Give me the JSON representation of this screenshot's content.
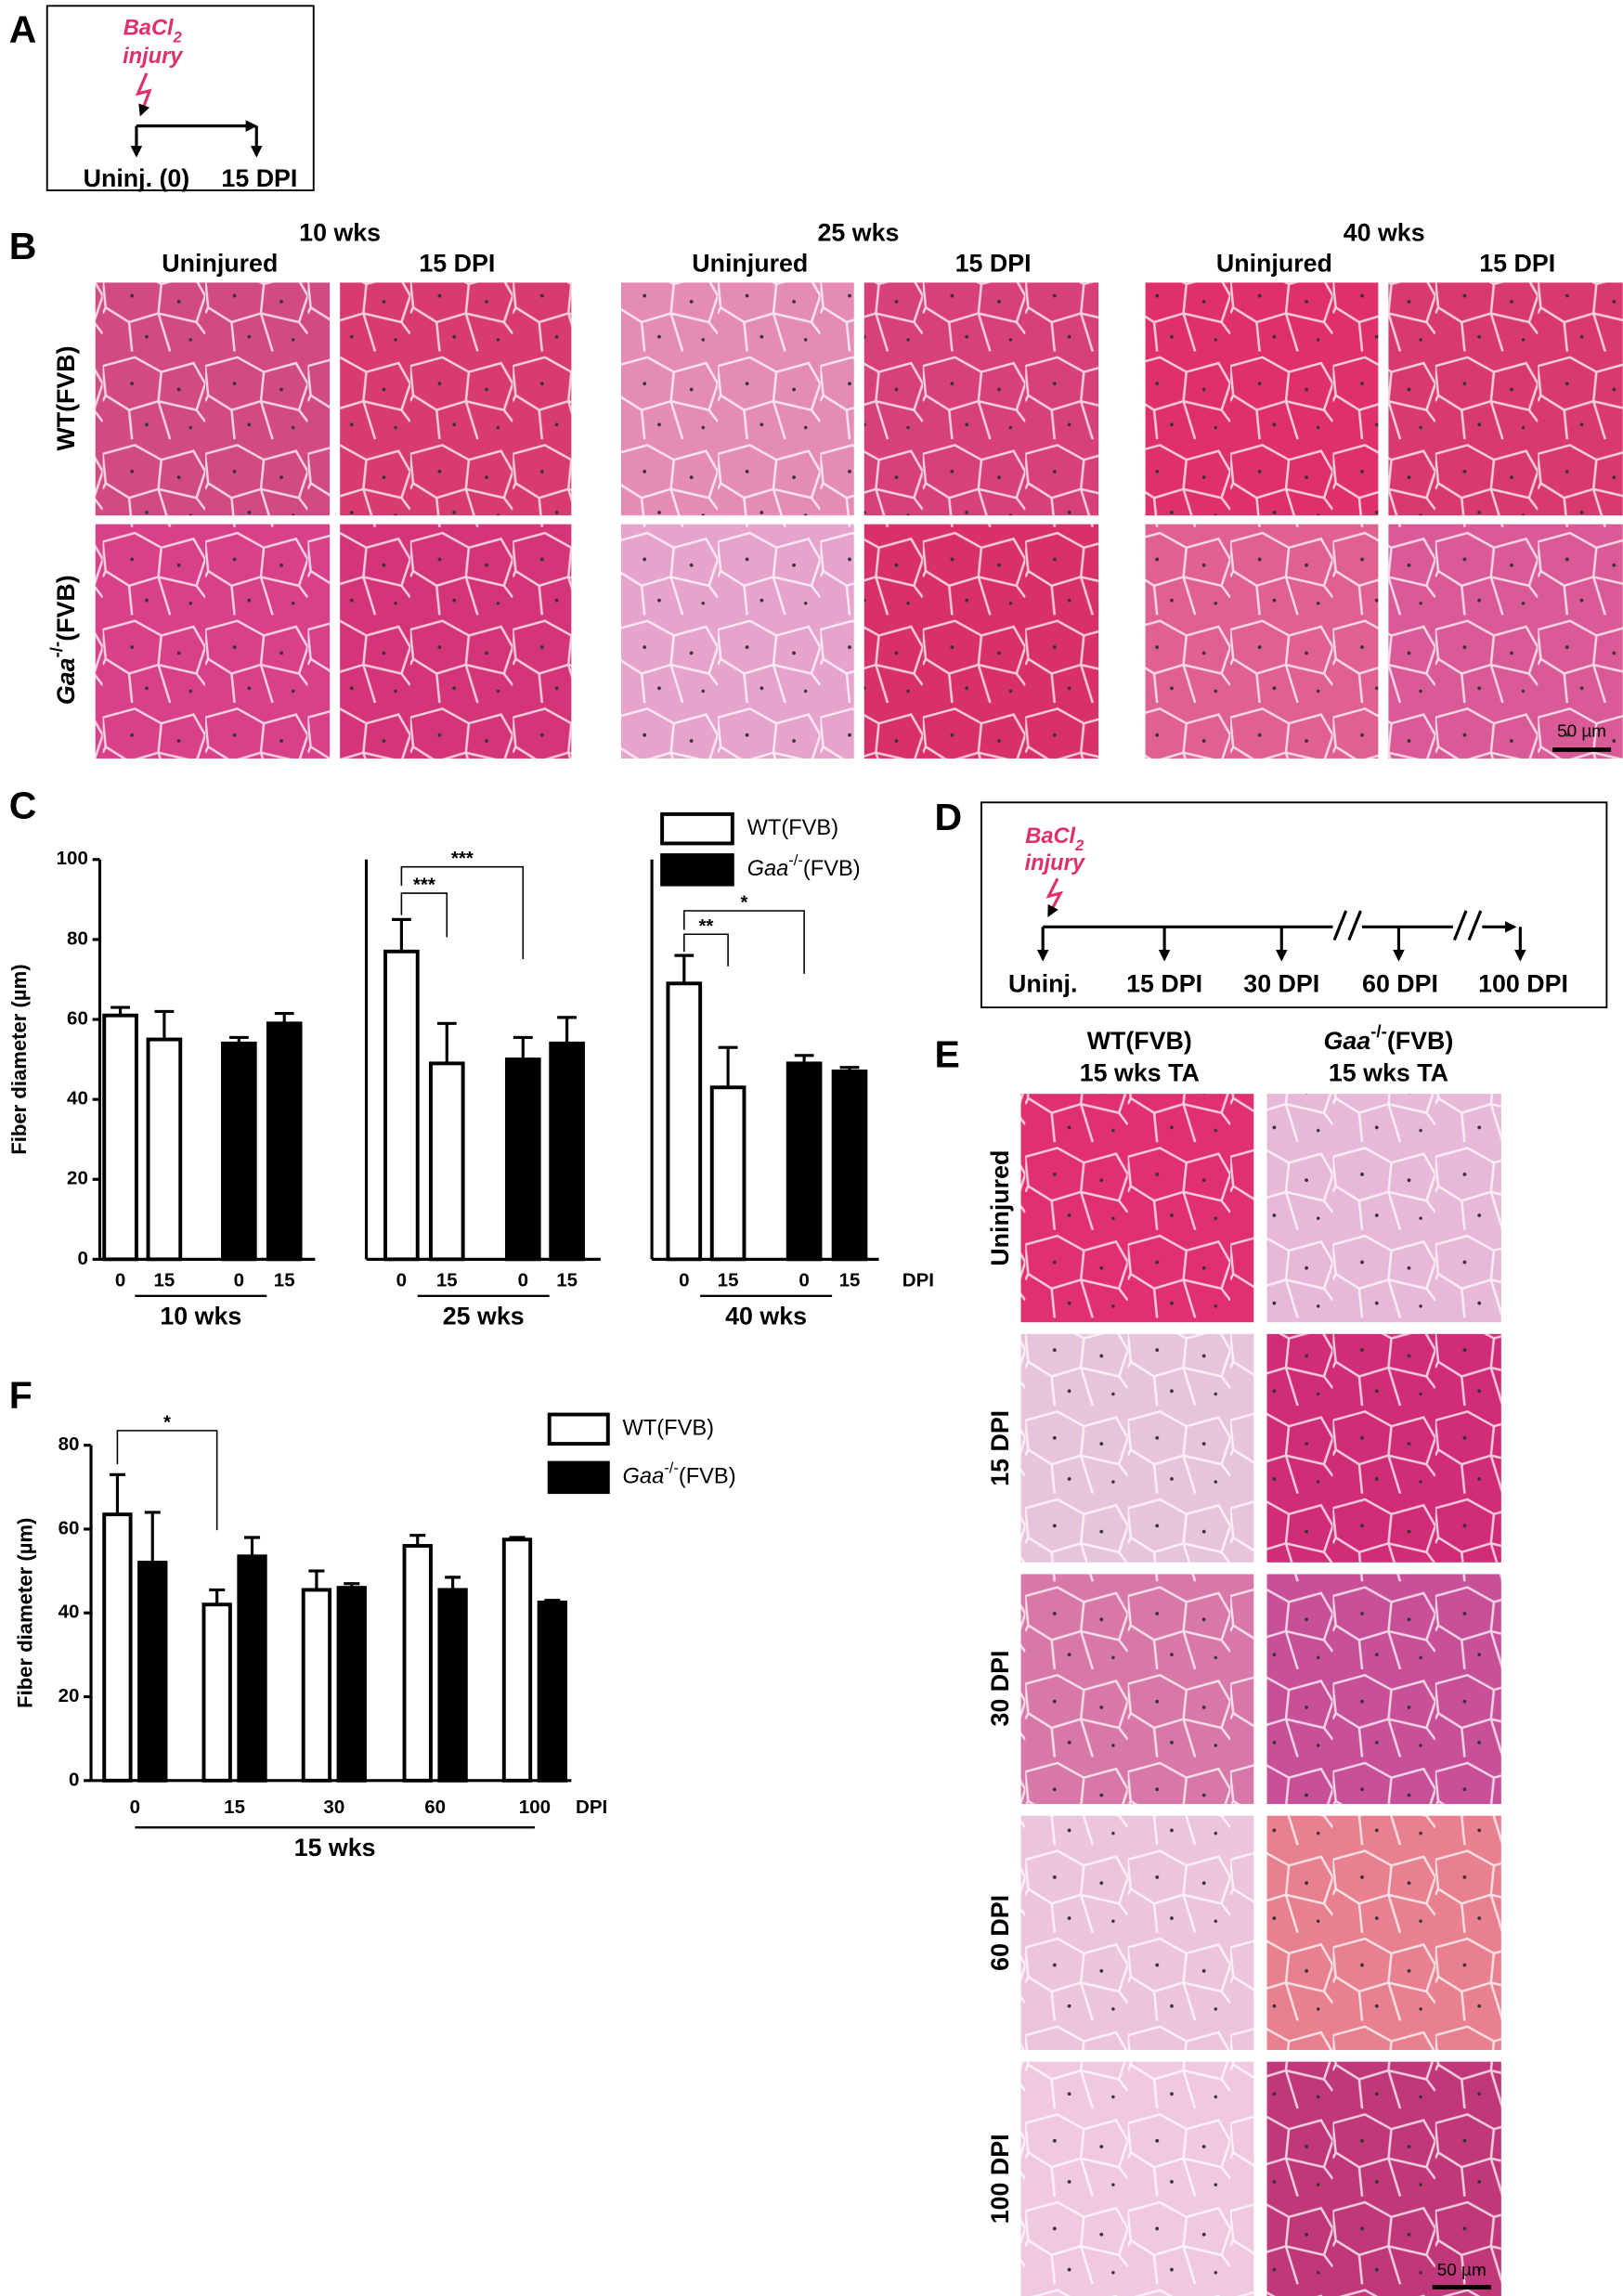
{
  "panels": {
    "A": {
      "label": "A",
      "treatment": "BaCl2",
      "treatment_note": "injury",
      "timepoints": [
        "Uninj. (0)",
        "15 DPI"
      ]
    },
    "B": {
      "label": "B",
      "groups": [
        {
          "title": "10 wks",
          "columns": [
            "Uninjured",
            "15 DPI"
          ]
        },
        {
          "title": "25 wks",
          "columns": [
            "Uninjured",
            "15 DPI"
          ]
        },
        {
          "title": "40 wks",
          "columns": [
            "Uninjured",
            "15 DPI"
          ]
        }
      ],
      "rows": [
        "WT(FVB)",
        "Gaa-/-(FVB)"
      ],
      "scale_bar": "50 µm"
    },
    "D": {
      "label": "D",
      "treatment": "BaCl2",
      "treatment_note": "injury",
      "timepoints": [
        "Uninj.",
        "15 DPI",
        "30 DPI",
        "60 DPI",
        "100 DPI"
      ]
    },
    "E": {
      "label": "E",
      "columns": [
        [
          "WT(FVB)",
          "15 wks TA"
        ],
        [
          "Gaa-/-(FVB)",
          "15 wks TA"
        ]
      ],
      "rows": [
        "Uninjured",
        "15 DPI",
        "30 DPI",
        "60 DPI",
        "100 DPI"
      ],
      "scale_bar": "50 µm"
    }
  },
  "chart_data": [
    {
      "type": "bar",
      "panel": "C",
      "y_label": "Fiber diameter (µm)",
      "categories": [
        "0",
        "15",
        "0",
        "15",
        "0",
        "15",
        "0",
        "15",
        "0",
        "15",
        "0",
        "15"
      ],
      "groups": [
        "10 wks",
        "25 wks",
        "40 wks"
      ],
      "x_unit": "DPI",
      "series": [
        {
          "name": "WT(FVB)",
          "color": "#ffffff",
          "values": [
            61,
            55,
            null,
            null,
            77,
            49,
            null,
            null,
            69,
            43,
            null,
            null
          ],
          "errors": [
            2,
            7,
            null,
            null,
            8,
            10,
            null,
            null,
            7,
            10,
            null,
            null
          ]
        },
        {
          "name": "Gaa-/-(FVB)",
          "color": "#000000",
          "values": [
            null,
            null,
            54,
            59,
            null,
            null,
            50,
            54,
            null,
            null,
            49,
            47
          ],
          "errors": [
            null,
            null,
            1.5,
            2.5,
            null,
            null,
            5.5,
            6.5,
            null,
            null,
            2,
            1
          ]
        }
      ],
      "ylim": [
        0,
        100
      ],
      "yticks": [
        0,
        20,
        40,
        60,
        80,
        100
      ],
      "annotations": [
        "***",
        "***",
        "**",
        "*"
      ]
    },
    {
      "type": "bar",
      "panel": "F",
      "y_label": "Fiber diameter (µm)",
      "categories": [
        "0",
        "15",
        "30",
        "60",
        "100"
      ],
      "groups": [
        "15 wks"
      ],
      "x_unit": "DPI",
      "series": [
        {
          "name": "WT(FVB)",
          "color": "#ffffff",
          "values": [
            63.5,
            42,
            45.5,
            56,
            57.5
          ],
          "errors": [
            9.5,
            3.5,
            4.5,
            2.5,
            0.5
          ]
        },
        {
          "name": "Gaa-/-(FVB)",
          "color": "#000000",
          "values": [
            52,
            53.5,
            46,
            45.5,
            42.5
          ],
          "errors": [
            12,
            4.5,
            1,
            3,
            0.5
          ]
        }
      ],
      "ylim": [
        0,
        80
      ],
      "yticks": [
        0,
        20,
        40,
        60,
        80
      ],
      "annotations": [
        "*"
      ]
    }
  ]
}
